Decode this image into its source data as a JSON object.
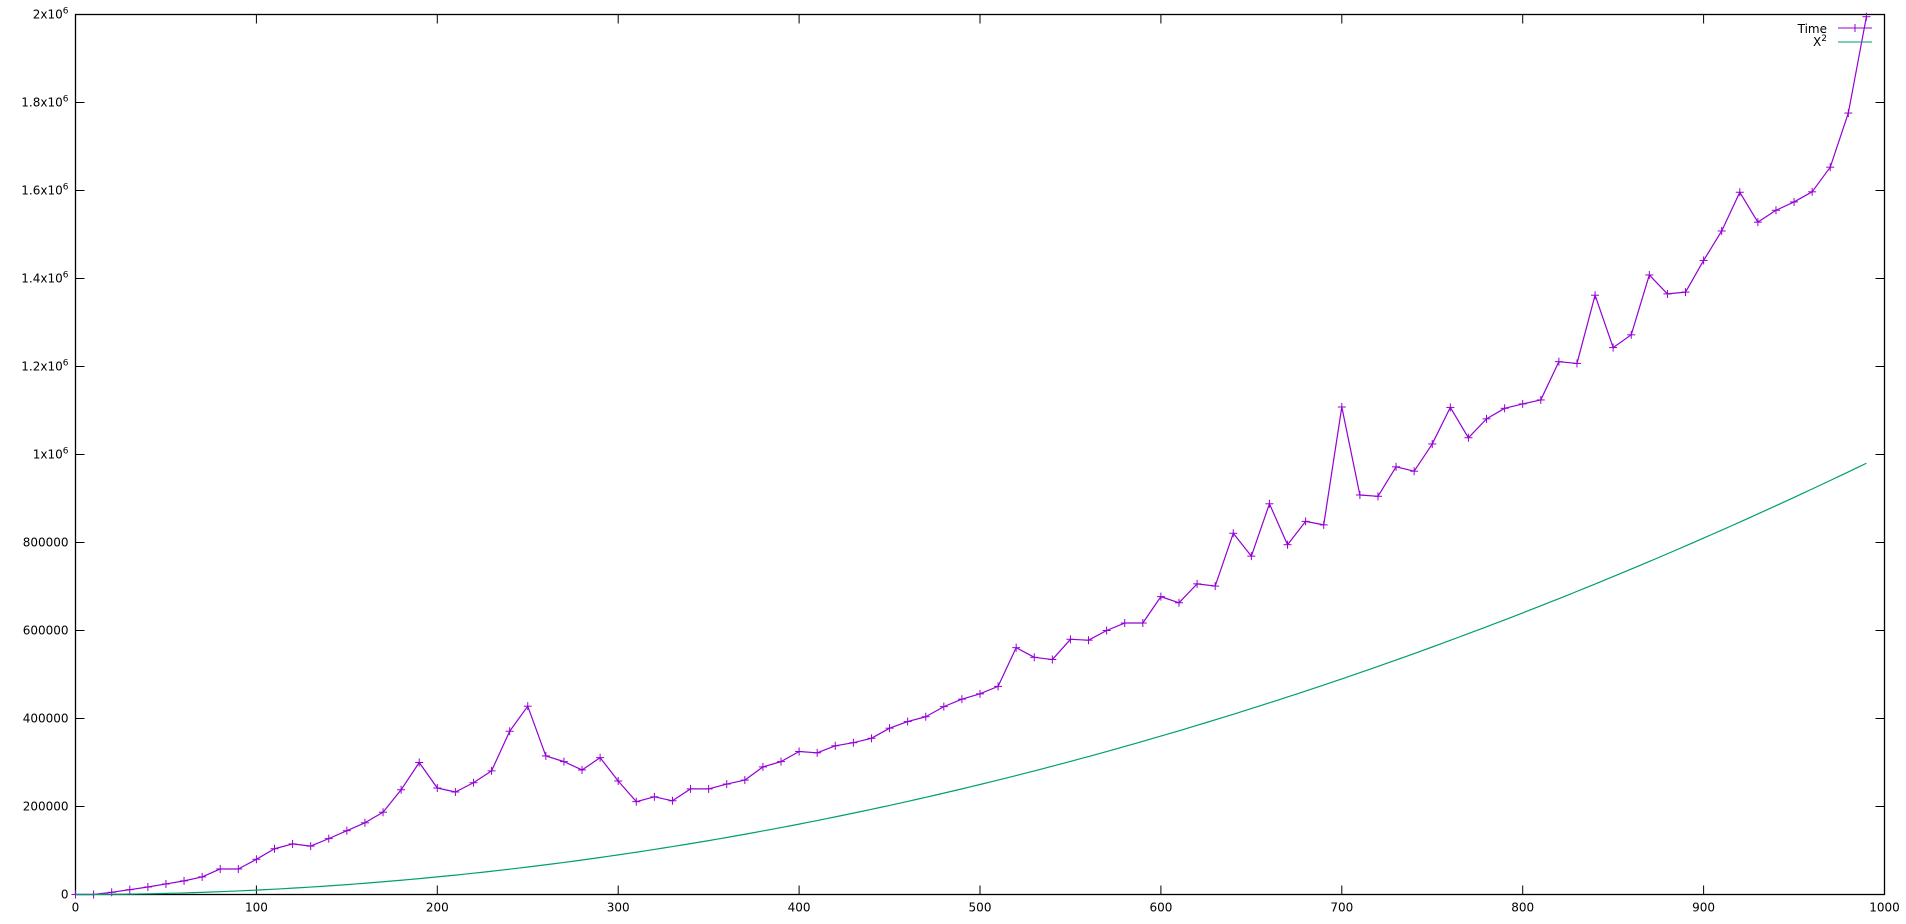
{
  "chart_data": {
    "type": "line",
    "title": "",
    "xlabel": "",
    "ylabel": "",
    "xlim": [
      0,
      1000
    ],
    "ylim": [
      0,
      2000000
    ],
    "grid": false,
    "legend_position": "top-right",
    "x_ticks": [
      {
        "value": 0,
        "label": "0"
      },
      {
        "value": 100,
        "label": "100"
      },
      {
        "value": 200,
        "label": "200"
      },
      {
        "value": 300,
        "label": "300"
      },
      {
        "value": 400,
        "label": "400"
      },
      {
        "value": 500,
        "label": "500"
      },
      {
        "value": 600,
        "label": "600"
      },
      {
        "value": 700,
        "label": "700"
      },
      {
        "value": 800,
        "label": "800"
      },
      {
        "value": 900,
        "label": "900"
      },
      {
        "value": 1000,
        "label": "1000"
      }
    ],
    "y_ticks": [
      {
        "value": 0,
        "label": "0"
      },
      {
        "value": 200000,
        "label": "200000"
      },
      {
        "value": 400000,
        "label": "400000"
      },
      {
        "value": 600000,
        "label": "600000"
      },
      {
        "value": 800000,
        "label": "800000"
      },
      {
        "value": 1000000,
        "label": "1x10",
        "sup": "6"
      },
      {
        "value": 1200000,
        "label": "1.2x10",
        "sup": "6"
      },
      {
        "value": 1400000,
        "label": "1.4x10",
        "sup": "6"
      },
      {
        "value": 1600000,
        "label": "1.6x10",
        "sup": "6"
      },
      {
        "value": 1800000,
        "label": "1.8x10",
        "sup": "6"
      },
      {
        "value": 2000000,
        "label": "2x10",
        "sup": "6"
      }
    ],
    "series": [
      {
        "name": "Time",
        "color": "#9400d3",
        "marker": "plus",
        "x": [
          0,
          10,
          20,
          30,
          40,
          50,
          60,
          70,
          80,
          90,
          100,
          110,
          120,
          130,
          140,
          150,
          160,
          170,
          180,
          190,
          200,
          210,
          220,
          230,
          240,
          250,
          260,
          270,
          280,
          290,
          300,
          310,
          320,
          330,
          340,
          350,
          360,
          370,
          380,
          390,
          400,
          410,
          420,
          430,
          440,
          450,
          460,
          470,
          480,
          490,
          500,
          510,
          520,
          530,
          540,
          550,
          560,
          570,
          580,
          590,
          600,
          610,
          620,
          630,
          640,
          650,
          660,
          670,
          680,
          690,
          700,
          710,
          720,
          730,
          740,
          750,
          760,
          770,
          780,
          790,
          800,
          810,
          820,
          830,
          840,
          850,
          860,
          870,
          880,
          890,
          900,
          910,
          920,
          930,
          940,
          950,
          960,
          970,
          980,
          990
        ],
        "y": [
          0,
          0,
          5000,
          11000,
          17000,
          24000,
          31000,
          40000,
          58000,
          58000,
          80000,
          104000,
          115000,
          110000,
          127000,
          145000,
          163000,
          187000,
          238000,
          300000,
          242000,
          233000,
          254000,
          281000,
          371000,
          428000,
          315000,
          302000,
          283000,
          311000,
          258000,
          211000,
          222000,
          213000,
          240000,
          240000,
          251000,
          260000,
          290000,
          302000,
          325000,
          322000,
          338000,
          345000,
          355000,
          378000,
          393000,
          404000,
          427000,
          444000,
          456000,
          473000,
          561000,
          539000,
          534000,
          580000,
          578000,
          600000,
          617000,
          617000,
          677000,
          663000,
          706000,
          701000,
          821000,
          769000,
          888000,
          795000,
          848000,
          840000,
          1108000,
          908000,
          905000,
          972000,
          962000,
          1024000,
          1107000,
          1038000,
          1081000,
          1105000,
          1115000,
          1124000,
          1211000,
          1207000,
          1362000,
          1243000,
          1272000,
          1408000,
          1365000,
          1369000,
          1441000,
          1508000,
          1596000,
          1528000,
          1555000,
          1574000,
          1597000,
          1653000,
          1776000,
          1995000
        ]
      },
      {
        "name": "X",
        "name_sup": "2",
        "color": "#009e73",
        "marker": "none",
        "function": "x^2",
        "x_range": [
          0,
          990
        ]
      }
    ]
  }
}
